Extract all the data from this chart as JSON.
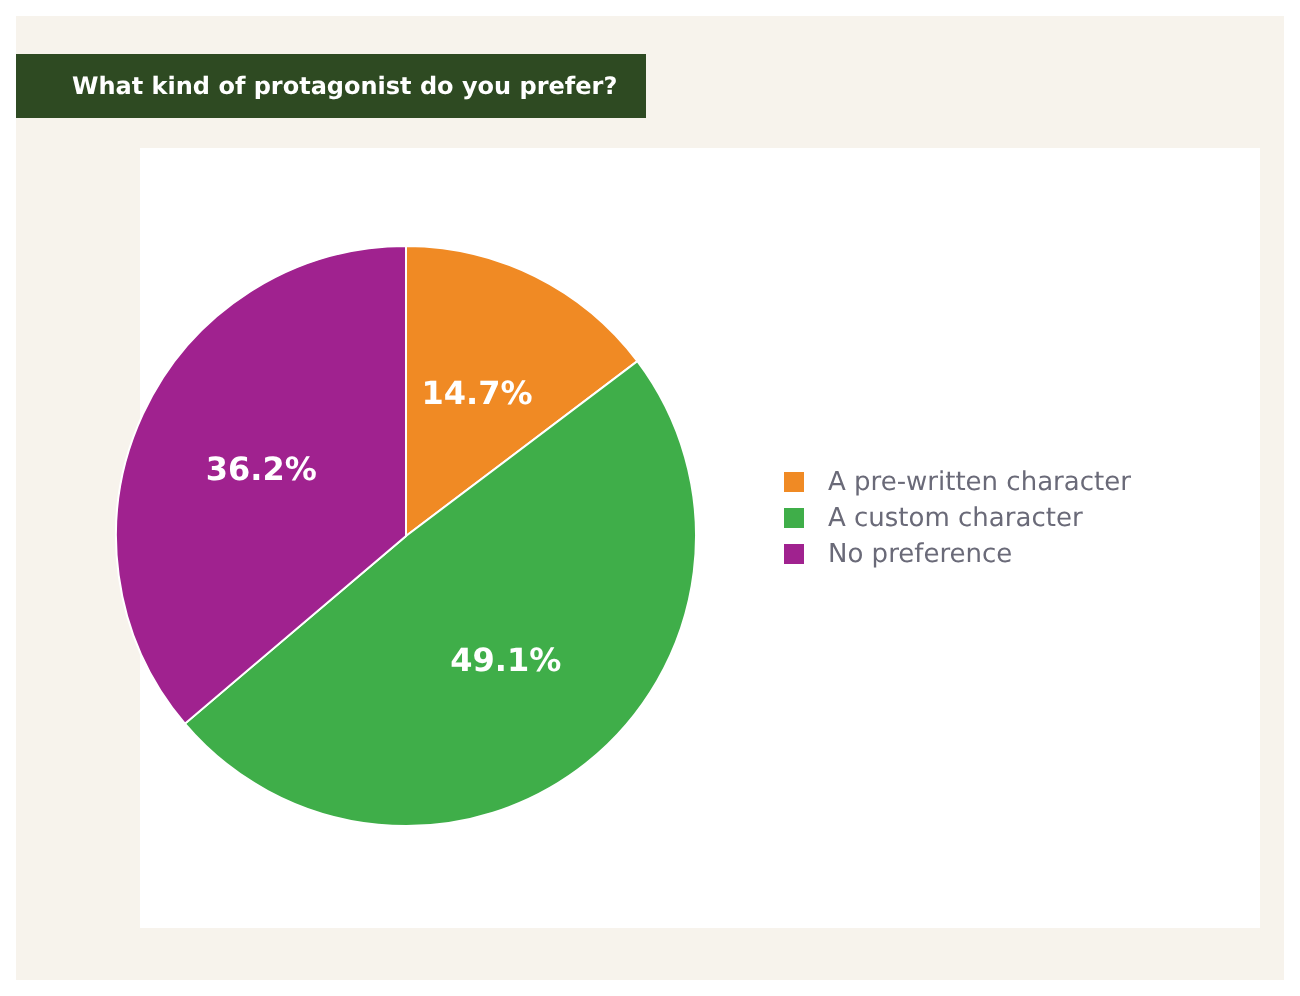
{
  "chart_data": {
    "type": "pie",
    "title": "What kind of protagonist do you prefer?",
    "categories": [
      "A pre-written character",
      "A custom character",
      "No preference"
    ],
    "values": [
      14.7,
      49.1,
      36.2
    ],
    "colors": [
      "#f08a24",
      "#3fae49",
      "#a0228f"
    ],
    "value_labels": [
      "14.7%",
      "49.1%",
      "36.2%"
    ],
    "legend": "right"
  }
}
